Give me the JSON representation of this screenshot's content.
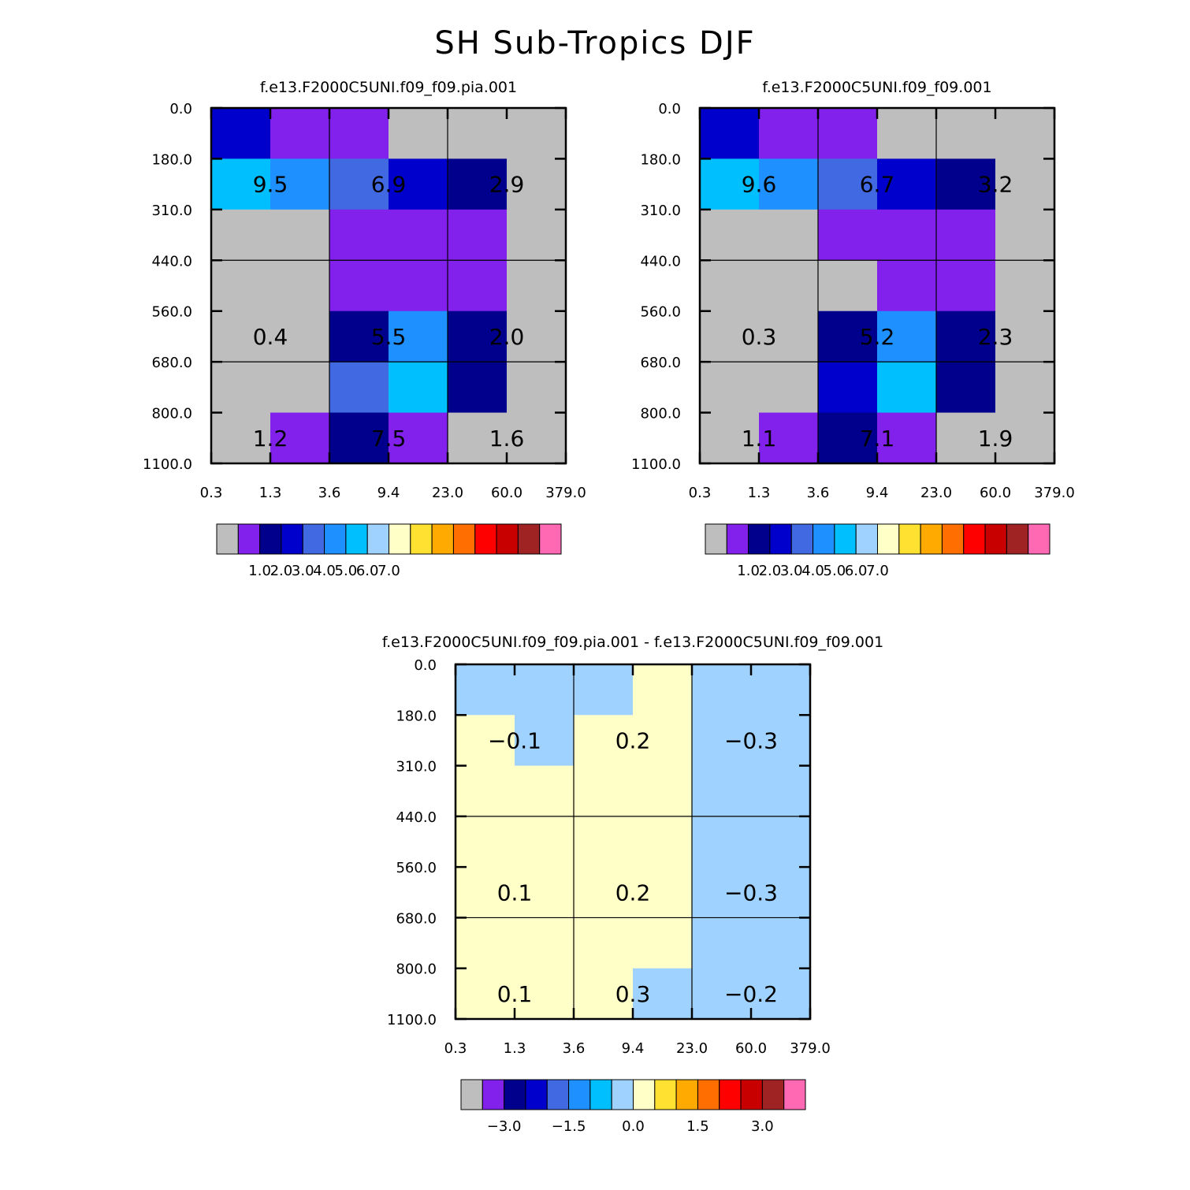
{
  "title": "SH Sub-Tropics DJF",
  "colors": {
    "missing": "#bebebe",
    "palette": [
      "#bebebe",
      "#8121eb",
      "#00008c",
      "#0000cd",
      "#4169e1",
      "#1e90ff",
      "#00bfff",
      "#a0d2ff",
      "#ffffc8",
      "#ffe132",
      "#ffaa00",
      "#ff6e00",
      "#ff0000",
      "#c80000",
      "#a02323",
      "#ff69b4"
    ],
    "palette_names": [
      "grey",
      "purple",
      "navy",
      "mediumblue",
      "royalblue",
      "dodgerblue",
      "deepskyblue",
      "lightblue",
      "lightyellow",
      "gold",
      "orange",
      "darkorange",
      "red",
      "darkred",
      "brown",
      "hotpink"
    ]
  },
  "chart_data": [
    {
      "type": "heatmap",
      "title": "f.e13.F2000C5UNI.f09_f09.pia.001",
      "x_tick_labels": [
        "0.3",
        "1.3",
        "3.6",
        "9.4",
        "23.0",
        "60.0",
        "379.0"
      ],
      "y_tick_labels": [
        "0.0",
        "180.0",
        "310.0",
        "440.0",
        "560.0",
        "680.0",
        "800.0",
        "1100.0"
      ],
      "xlabel": "",
      "ylabel": "",
      "grid_cells_color_index": [
        [
          3,
          1,
          1,
          0,
          0,
          0
        ],
        [
          6,
          5,
          4,
          3,
          2,
          0
        ],
        [
          0,
          0,
          1,
          1,
          1,
          0
        ],
        [
          0,
          0,
          1,
          1,
          1,
          0
        ],
        [
          0,
          0,
          2,
          5,
          2,
          0
        ],
        [
          0,
          0,
          4,
          6,
          2,
          0
        ],
        [
          0,
          1,
          2,
          1,
          0,
          0
        ]
      ],
      "summary_values": [
        {
          "label": "9.5",
          "col": 1,
          "row": 1
        },
        {
          "label": "6.9",
          "col": 3,
          "row": 1
        },
        {
          "label": "2.9",
          "col": 5,
          "row": 1
        },
        {
          "label": "0.4",
          "col": 1,
          "row": 4
        },
        {
          "label": "5.5",
          "col": 3,
          "row": 4
        },
        {
          "label": "2.0",
          "col": 5,
          "row": 4
        },
        {
          "label": "1.2",
          "col": 1,
          "row": 6
        },
        {
          "label": "7.5",
          "col": 3,
          "row": 6
        },
        {
          "label": "1.6",
          "col": 5,
          "row": 6
        }
      ],
      "colorbar": {
        "levels": [
          "1.0",
          "2.0",
          "3.0",
          "4.0",
          "5.0",
          "6.0",
          "7.0"
        ],
        "box_count": 16
      }
    },
    {
      "type": "heatmap",
      "title": "f.e13.F2000C5UNI.f09_f09.001",
      "x_tick_labels": [
        "0.3",
        "1.3",
        "3.6",
        "9.4",
        "23.0",
        "60.0",
        "379.0"
      ],
      "y_tick_labels": [
        "0.0",
        "180.0",
        "310.0",
        "440.0",
        "560.0",
        "680.0",
        "800.0",
        "1100.0"
      ],
      "xlabel": "",
      "ylabel": "",
      "grid_cells_color_index": [
        [
          3,
          1,
          1,
          0,
          0,
          0
        ],
        [
          6,
          5,
          4,
          3,
          2,
          0
        ],
        [
          0,
          0,
          1,
          1,
          1,
          0
        ],
        [
          0,
          0,
          0,
          1,
          1,
          0
        ],
        [
          0,
          0,
          2,
          5,
          2,
          0
        ],
        [
          0,
          0,
          3,
          6,
          2,
          0
        ],
        [
          0,
          1,
          2,
          1,
          0,
          0
        ]
      ],
      "summary_values": [
        {
          "label": "9.6",
          "col": 1,
          "row": 1
        },
        {
          "label": "6.7",
          "col": 3,
          "row": 1
        },
        {
          "label": "3.2",
          "col": 5,
          "row": 1
        },
        {
          "label": "0.3",
          "col": 1,
          "row": 4
        },
        {
          "label": "5.2",
          "col": 3,
          "row": 4
        },
        {
          "label": "2.3",
          "col": 5,
          "row": 4
        },
        {
          "label": "1.1",
          "col": 1,
          "row": 6
        },
        {
          "label": "7.1",
          "col": 3,
          "row": 6
        },
        {
          "label": "1.9",
          "col": 5,
          "row": 6
        }
      ],
      "colorbar": {
        "levels": [
          "1.0",
          "2.0",
          "3.0",
          "4.0",
          "5.0",
          "6.0",
          "7.0"
        ],
        "box_count": 16
      }
    },
    {
      "type": "heatmap",
      "title": "f.e13.F2000C5UNI.f09_f09.pia.001 - f.e13.F2000C5UNI.f09_f09.001",
      "x_tick_labels": [
        "0.3",
        "1.3",
        "3.6",
        "9.4",
        "23.0",
        "60.0",
        "379.0"
      ],
      "y_tick_labels": [
        "0.0",
        "180.0",
        "310.0",
        "440.0",
        "560.0",
        "680.0",
        "800.0",
        "1100.0"
      ],
      "xlabel": "",
      "ylabel": "",
      "grid_cells_color_index": [
        [
          7,
          7,
          7,
          8,
          7,
          7
        ],
        [
          8,
          7,
          8,
          8,
          7,
          7
        ],
        [
          8,
          8,
          8,
          8,
          7,
          7
        ],
        [
          8,
          8,
          8,
          8,
          7,
          7
        ],
        [
          8,
          8,
          8,
          8,
          7,
          7
        ],
        [
          8,
          8,
          8,
          8,
          7,
          7
        ],
        [
          8,
          8,
          8,
          7,
          7,
          7
        ]
      ],
      "summary_values": [
        {
          "label": "−0.1",
          "col": 1,
          "row": 1
        },
        {
          "label": "0.2",
          "col": 3,
          "row": 1
        },
        {
          "label": "−0.3",
          "col": 5,
          "row": 1
        },
        {
          "label": "0.1",
          "col": 1,
          "row": 4
        },
        {
          "label": "0.2",
          "col": 3,
          "row": 4
        },
        {
          "label": "−0.3",
          "col": 5,
          "row": 4
        },
        {
          "label": "0.1",
          "col": 1,
          "row": 6
        },
        {
          "label": "0.3",
          "col": 3,
          "row": 6
        },
        {
          "label": "−0.2",
          "col": 5,
          "row": 6
        }
      ],
      "colorbar": {
        "levels": [
          "−3.0",
          "−1.5",
          "0.0",
          "1.5",
          "3.0"
        ],
        "box_count": 16
      }
    }
  ]
}
